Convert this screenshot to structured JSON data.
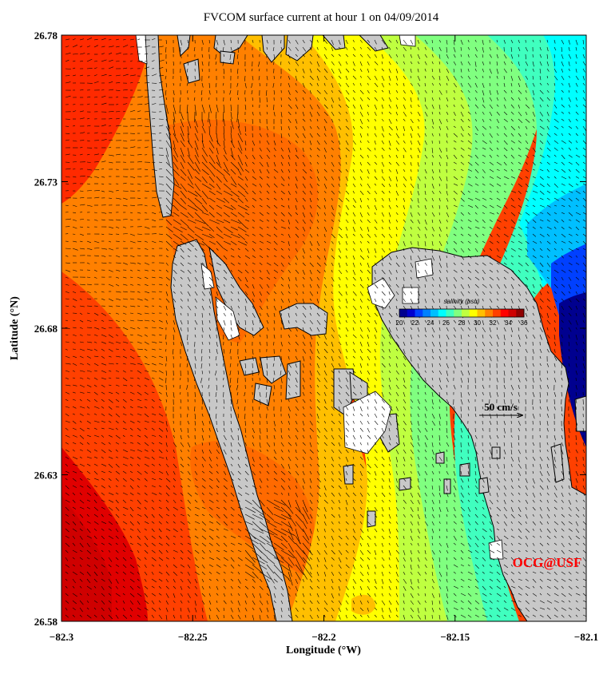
{
  "title": "FVCOM surface current at hour 1 on 04/09/2014",
  "x_axis": {
    "label": "Longitude (°W)",
    "ticks": [
      {
        "value": -82.3,
        "label": "−82.3"
      },
      {
        "value": -82.25,
        "label": "−82.25"
      },
      {
        "value": -82.2,
        "label": "−82.2"
      },
      {
        "value": -82.15,
        "label": "−82.15"
      },
      {
        "value": -82.1,
        "label": "−82.1"
      }
    ],
    "range": [
      -82.3,
      -82.1
    ]
  },
  "y_axis": {
    "label": "Latitude (°N)",
    "ticks": [
      {
        "value": 26.78,
        "label": "26.78"
      },
      {
        "value": 26.73,
        "label": "26.73"
      },
      {
        "value": 26.68,
        "label": "26.68"
      },
      {
        "value": 26.63,
        "label": "26.63"
      },
      {
        "value": 26.58,
        "label": "26.58"
      }
    ],
    "range": [
      26.58,
      26.78
    ]
  },
  "colorbar": {
    "title": "salinity (psu)",
    "ticks": [
      "20",
      "22",
      "24",
      "26",
      "28",
      "30",
      "32",
      "34",
      "36"
    ],
    "range": [
      20,
      36
    ],
    "colors": [
      "#00008f",
      "#0000cf",
      "#0040ff",
      "#0080ff",
      "#00bfff",
      "#00ffff",
      "#40ffbf",
      "#80ff80",
      "#bfff40",
      "#ffff00",
      "#ffbf00",
      "#ff8000",
      "#ff4000",
      "#ff0000",
      "#cf0000",
      "#8f0000"
    ]
  },
  "reference_vector": {
    "label": "50 cm/s"
  },
  "credit": {
    "text": "OCG@USF",
    "color": "#ff0000"
  },
  "land_color": "#c8c8c8"
}
